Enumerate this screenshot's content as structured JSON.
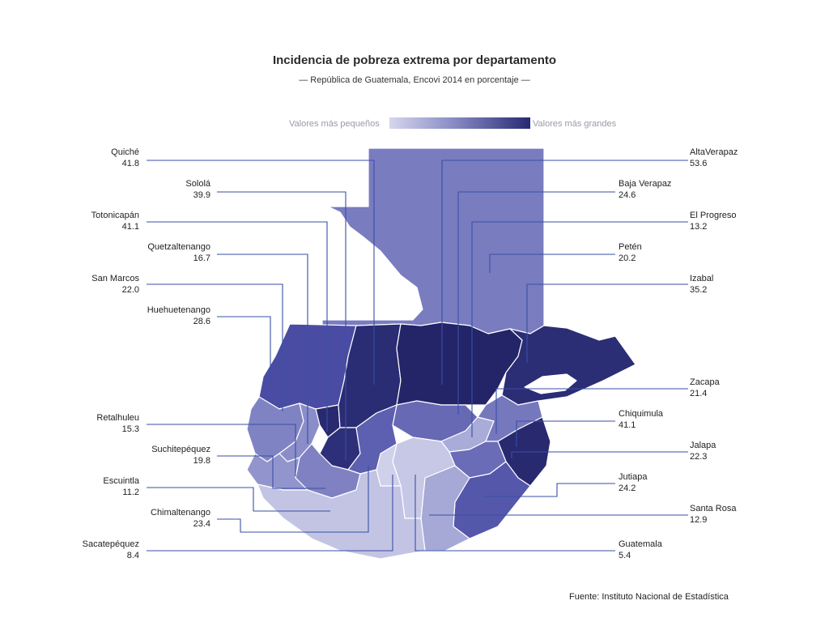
{
  "title": "Incidencia de pobreza extrema por departamento",
  "subtitle": "— República de Guatemala, Encovi 2014 en porcentaje —",
  "legend": {
    "low": "Valores más pequeños",
    "high": "Valores más grandes",
    "colors": [
      "#d5d6ec",
      "#8a8cc6",
      "#272a73"
    ]
  },
  "source": "Fuente: Instituto Nacional de Estadística",
  "departments": {
    "quiche": {
      "name": "Quiché",
      "value": "41.8"
    },
    "solola": {
      "name": "Sololá",
      "value": "39.9"
    },
    "totonicapan": {
      "name": "Totonicapán",
      "value": "41.1"
    },
    "quetzaltenango": {
      "name": "Quetzaltenango",
      "value": "16.7"
    },
    "san_marcos": {
      "name": "San Marcos",
      "value": "22.0"
    },
    "huehuetenango": {
      "name": "Huehuetenango",
      "value": "28.6"
    },
    "retalhuleu": {
      "name": "Retalhuleu",
      "value": "15.3"
    },
    "suchitepequez": {
      "name": "Suchitepéquez",
      "value": "19.8"
    },
    "escuintla": {
      "name": "Escuintla",
      "value": "11.2"
    },
    "chimaltenango": {
      "name": "Chimaltenango",
      "value": "23.4"
    },
    "sacatepequez": {
      "name": "Sacatepéquez",
      "value": "8.4"
    },
    "alta_verapaz": {
      "name": "AltaVerapaz",
      "value": "53.6"
    },
    "baja_verapaz": {
      "name": "Baja Verapaz",
      "value": "24.6"
    },
    "el_progreso": {
      "name": "El Progreso",
      "value": "13.2"
    },
    "peten": {
      "name": "Petén",
      "value": "20.2"
    },
    "izabal": {
      "name": "Izabal",
      "value": "35.2"
    },
    "zacapa": {
      "name": "Zacapa",
      "value": "21.4"
    },
    "chiquimula": {
      "name": "Chiquimula",
      "value": "41.1"
    },
    "jalapa": {
      "name": "Jalapa",
      "value": "22.3"
    },
    "jutiapa": {
      "name": "Jutiapa",
      "value": "24.2"
    },
    "santa_rosa": {
      "name": "Santa Rosa",
      "value": "12.9"
    },
    "guatemala": {
      "name": "Guatemala",
      "value": "5.4"
    }
  }
}
